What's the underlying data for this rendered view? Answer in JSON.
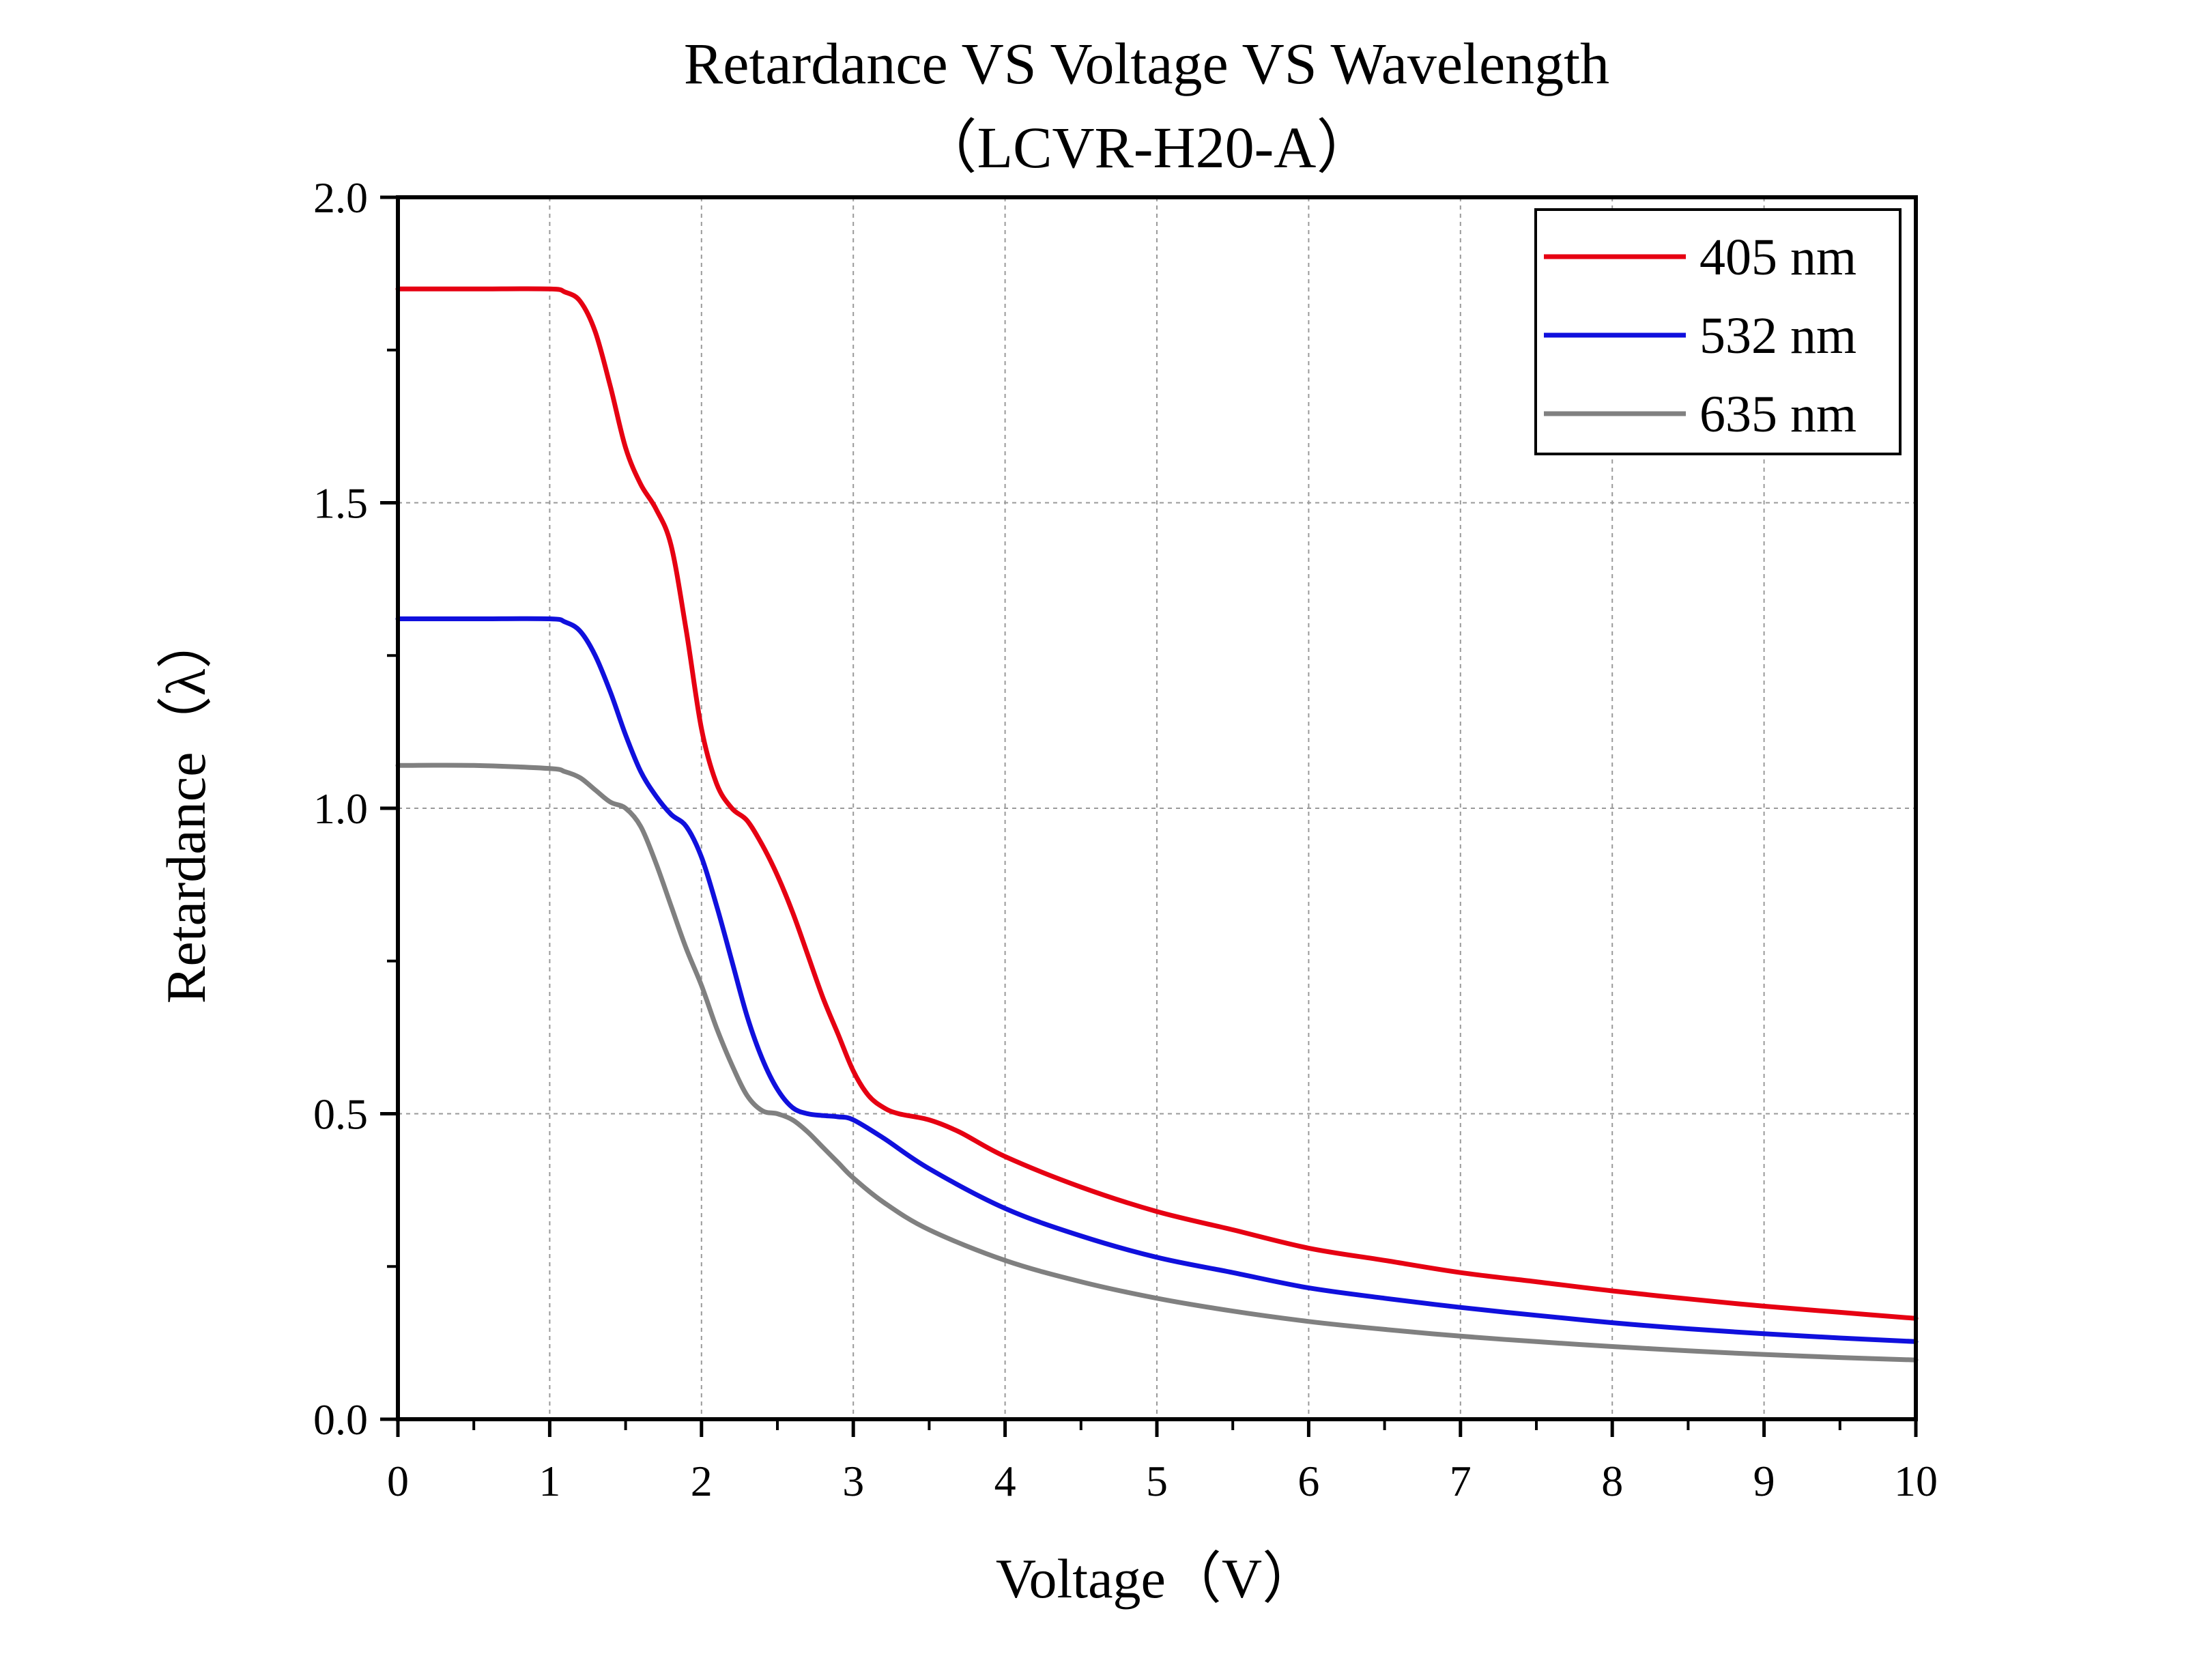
{
  "chart_data": {
    "type": "line",
    "title": "Retardance VS Voltage VS Wavelength",
    "subtitle": "（LCVR-H20-A）",
    "xlabel": "Voltage（V）",
    "ylabel": "Retardance（λ）",
    "xlim": [
      0,
      10
    ],
    "ylim": [
      0,
      2.0
    ],
    "xticks": [
      "0",
      "1",
      "2",
      "3",
      "4",
      "5",
      "6",
      "7",
      "8",
      "9",
      "10"
    ],
    "yticks": [
      "0.0",
      "0.5",
      "1.0",
      "1.5",
      "2.0"
    ],
    "grid": true,
    "legend_position": "top-right",
    "series": [
      {
        "name": "405 nm",
        "color": "#e60012",
        "x": [
          0,
          0.5,
          1.0,
          1.1,
          1.2,
          1.3,
          1.4,
          1.5,
          1.6,
          1.7,
          1.8,
          1.9,
          2.0,
          2.1,
          2.2,
          2.3,
          2.4,
          2.5,
          2.6,
          2.7,
          2.8,
          2.9,
          3.0,
          3.1,
          3.2,
          3.3,
          3.5,
          3.7,
          4.0,
          4.5,
          5.0,
          5.5,
          6.0,
          6.5,
          7.0,
          7.5,
          8.0,
          8.5,
          9.0,
          9.5,
          10.0
        ],
        "y": [
          1.85,
          1.85,
          1.85,
          1.845,
          1.83,
          1.78,
          1.69,
          1.59,
          1.53,
          1.49,
          1.43,
          1.29,
          1.13,
          1.04,
          1.0,
          0.98,
          0.94,
          0.89,
          0.83,
          0.76,
          0.69,
          0.63,
          0.57,
          0.53,
          0.51,
          0.5,
          0.49,
          0.47,
          0.43,
          0.38,
          0.34,
          0.31,
          0.28,
          0.26,
          0.24,
          0.225,
          0.21,
          0.197,
          0.185,
          0.175,
          0.165
        ]
      },
      {
        "name": "532 nm",
        "color": "#1010dd",
        "x": [
          0,
          0.5,
          1.0,
          1.1,
          1.2,
          1.3,
          1.4,
          1.5,
          1.6,
          1.7,
          1.8,
          1.9,
          2.0,
          2.1,
          2.2,
          2.3,
          2.4,
          2.5,
          2.6,
          2.7,
          2.8,
          2.9,
          3.0,
          3.2,
          3.5,
          4.0,
          4.5,
          5.0,
          5.5,
          6.0,
          6.5,
          7.0,
          7.5,
          8.0,
          8.5,
          9.0,
          9.5,
          10.0
        ],
        "y": [
          1.31,
          1.31,
          1.31,
          1.305,
          1.29,
          1.25,
          1.19,
          1.12,
          1.06,
          1.02,
          0.99,
          0.97,
          0.92,
          0.84,
          0.75,
          0.66,
          0.59,
          0.54,
          0.51,
          0.5,
          0.497,
          0.495,
          0.49,
          0.46,
          0.41,
          0.345,
          0.3,
          0.265,
          0.24,
          0.215,
          0.198,
          0.183,
          0.17,
          0.158,
          0.148,
          0.14,
          0.133,
          0.127
        ]
      },
      {
        "name": "635 nm",
        "color": "#808080",
        "x": [
          0,
          0.5,
          1.0,
          1.1,
          1.2,
          1.3,
          1.4,
          1.5,
          1.6,
          1.7,
          1.8,
          1.9,
          2.0,
          2.1,
          2.2,
          2.3,
          2.4,
          2.5,
          2.6,
          2.7,
          2.8,
          2.9,
          3.0,
          3.2,
          3.5,
          4.0,
          4.5,
          5.0,
          5.5,
          6.0,
          6.5,
          7.0,
          7.5,
          8.0,
          8.5,
          9.0,
          9.5,
          10.0
        ],
        "y": [
          1.07,
          1.07,
          1.065,
          1.06,
          1.05,
          1.03,
          1.01,
          1.0,
          0.97,
          0.91,
          0.84,
          0.77,
          0.71,
          0.64,
          0.58,
          0.53,
          0.505,
          0.5,
          0.49,
          0.47,
          0.445,
          0.42,
          0.395,
          0.355,
          0.31,
          0.26,
          0.225,
          0.198,
          0.177,
          0.16,
          0.147,
          0.136,
          0.127,
          0.119,
          0.112,
          0.106,
          0.101,
          0.097
        ]
      }
    ]
  }
}
